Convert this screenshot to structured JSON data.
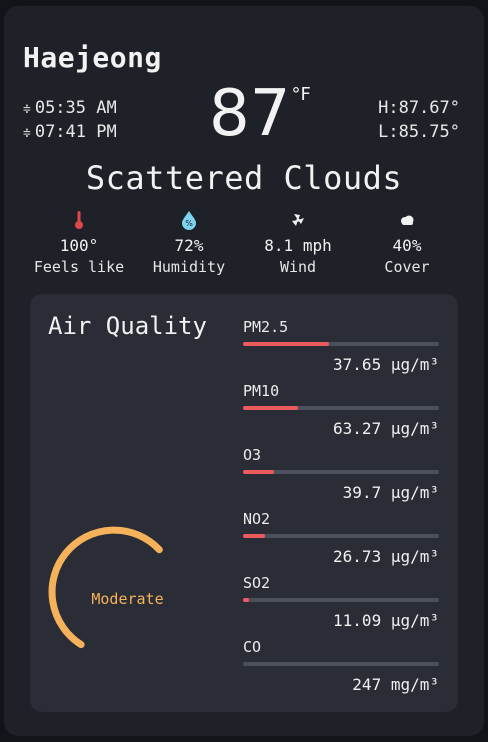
{
  "weather": {
    "city": "Haejeong",
    "sunrise": "05:35 AM",
    "sunset": "07:41 PM",
    "temperature": "87",
    "unit": "°F",
    "high": "H:87.67°",
    "low": "L:85.75°",
    "condition": "Scattered Clouds"
  },
  "stats": [
    {
      "icon": "thermometer-icon",
      "value": "100°",
      "label": "Feels like"
    },
    {
      "icon": "humidity-icon",
      "value": "72%",
      "label": "Humidity"
    },
    {
      "icon": "wind-icon",
      "value": "8.1 mph",
      "label": "Wind"
    },
    {
      "icon": "cloud-icon",
      "value": "40%",
      "label": "Cover"
    }
  ],
  "air_quality": {
    "title": "Air Quality",
    "status": "Moderate",
    "gauge_level": 0.5,
    "pollutants": [
      {
        "name": "PM2.5",
        "value": "37.65 µg/m³",
        "level": 0.44
      },
      {
        "name": "PM10",
        "value": "63.27 µg/m³",
        "level": 0.28
      },
      {
        "name": "O3",
        "value": "39.7 µg/m³",
        "level": 0.16
      },
      {
        "name": "NO2",
        "value": "26.73 µg/m³",
        "level": 0.11
      },
      {
        "name": "SO2",
        "value": "11.09 µg/m³",
        "level": 0.03
      },
      {
        "name": "CO",
        "value": "247 mg/m³",
        "level": 0.0
      }
    ]
  },
  "colors": {
    "background": "#1f2128",
    "panel": "#2a2d36",
    "bar_fill": "#ec5a5e",
    "bar_track": "#4c505c",
    "gauge": "#f5b25b",
    "thermometer": "#e0474c",
    "humidity": "#7ed3f0"
  }
}
